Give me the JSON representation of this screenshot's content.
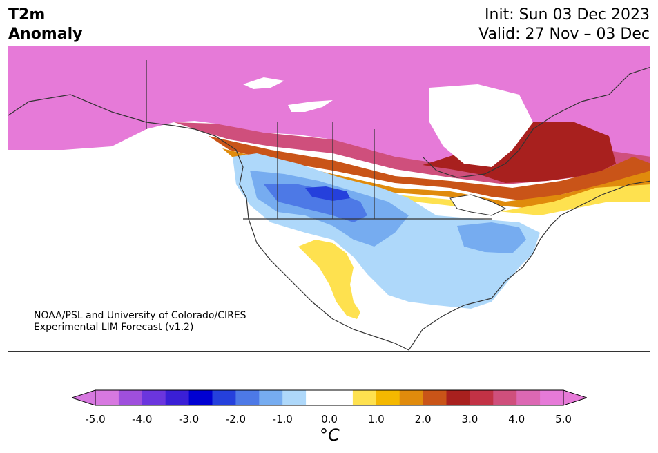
{
  "header": {
    "title_line1": "T2m",
    "title_line2": "Anomaly",
    "init": "Init: Sun 03 Dec 2023",
    "valid": "Valid: 27 Nov – 03 Dec"
  },
  "credit": {
    "line1": "NOAA/PSL and University of Colorado/CIRES",
    "line2": "Experimental LIM Forecast (v1.2)"
  },
  "colorbar": {
    "unit": "°C",
    "colors": [
      "#d778e0",
      "#9f4fdd",
      "#6b35de",
      "#3a1fd6",
      "#0000d2",
      "#2540dc",
      "#4d79e6",
      "#76acf0",
      "#aed8fa",
      "#ffffff",
      "#ffffff",
      "#fee14f",
      "#f4b800",
      "#e08b0c",
      "#c95418",
      "#a8201e",
      "#c23245",
      "#cf4f7c",
      "#dc68b3",
      "#e67ad8"
    ],
    "tick_labels": [
      "-5.0",
      "-4.0",
      "-3.0",
      "-2.0",
      "-1.0",
      "0.0",
      "1.0",
      "2.0",
      "3.0",
      "4.0",
      "5.0"
    ],
    "range": [
      -5.0,
      5.0
    ],
    "extend": "both"
  }
}
